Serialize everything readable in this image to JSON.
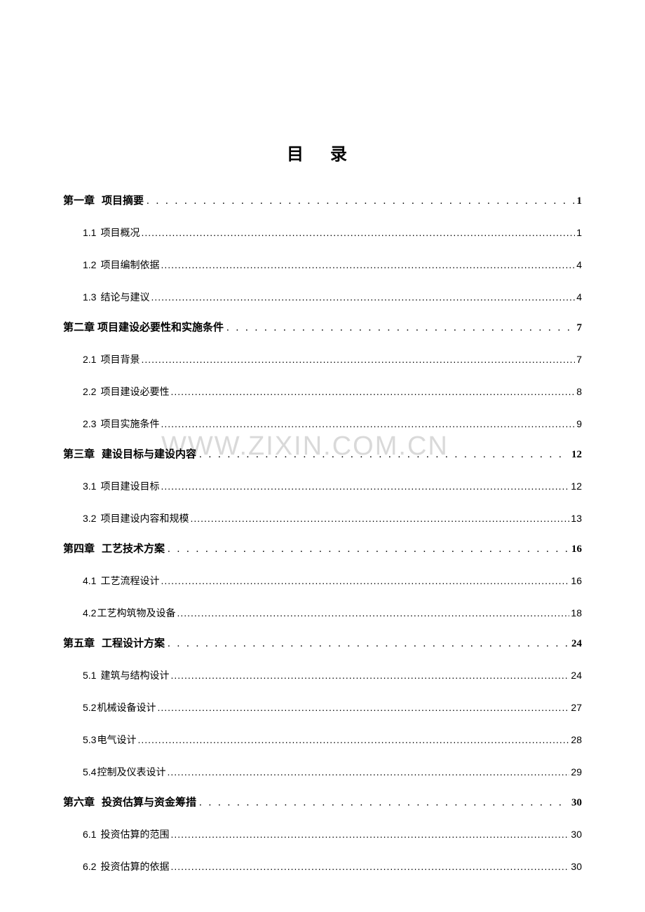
{
  "title": "目 录",
  "watermark": "WWW.ZIXIN.COM.CN",
  "chapter_leader": ". . . . . . . . . . . . . . . . . . . . . . . . . . . . . . . . . . . . . . . . . . . . . . . . . . . . . . . . . . . . . . . . . . . . . . . . . . . . . . . . . . . . . . . . . . . . . . . . . . . . . . . . . . . . . . . . . . . . . . . .",
  "section_leader": "........................................................................................................................................................................................................................................................",
  "toc": [
    {
      "chapter_label": "第一章",
      "chapter_title": "项目摘要",
      "page": "1",
      "sections": [
        {
          "number": "1.1",
          "title": "项目概况",
          "page": "1"
        },
        {
          "number": "1.2",
          "title": "项目编制依据",
          "page": "4"
        },
        {
          "number": "1.3",
          "title": "结论与建议",
          "page": "4"
        }
      ]
    },
    {
      "chapter_label": "第二章",
      "chapter_title": "项目建设必要性和实施条件",
      "page": "7",
      "no_gap": true,
      "sections": [
        {
          "number": "2.1",
          "title": "项目背景",
          "page": "7"
        },
        {
          "number": "2.2",
          "title": "项目建设必要性",
          "page": "8"
        },
        {
          "number": "2.3",
          "title": "项目实施条件",
          "page": "9"
        }
      ]
    },
    {
      "chapter_label": "第三章",
      "chapter_title": "建设目标与建设内容",
      "page": "12",
      "sections": [
        {
          "number": "3.1",
          "title": "项目建设目标",
          "page": "12"
        },
        {
          "number": "3.2",
          "title": "项目建设内容和规模",
          "page": "13"
        }
      ]
    },
    {
      "chapter_label": "第四章",
      "chapter_title": "工艺技术方案",
      "page": "16",
      "sections": [
        {
          "number": "4.1",
          "title": "工艺流程设计",
          "page": "16"
        },
        {
          "number": "4.2",
          "title": "工艺构筑物及设备",
          "page": "18",
          "no_gap": true
        }
      ]
    },
    {
      "chapter_label": "第五章",
      "chapter_title": "工程设计方案",
      "page": "24",
      "sections": [
        {
          "number": "5.1",
          "title": "建筑与结构设计",
          "page": "24"
        },
        {
          "number": "5.2",
          "title": "机械设备设计",
          "page": "27",
          "no_gap": true
        },
        {
          "number": "5.3",
          "title": "电气设计",
          "page": "28",
          "no_gap": true
        },
        {
          "number": "5.4",
          "title": "控制及仪表设计",
          "page": "29",
          "no_gap": true
        }
      ]
    },
    {
      "chapter_label": "第六章",
      "chapter_title": "投资估算与资金筹措",
      "page": "30",
      "sections": [
        {
          "number": "6.1",
          "title": "投资估算的范围",
          "page": "30"
        },
        {
          "number": "6.2",
          "title": "投资估算的依据",
          "page": "30"
        }
      ]
    }
  ]
}
